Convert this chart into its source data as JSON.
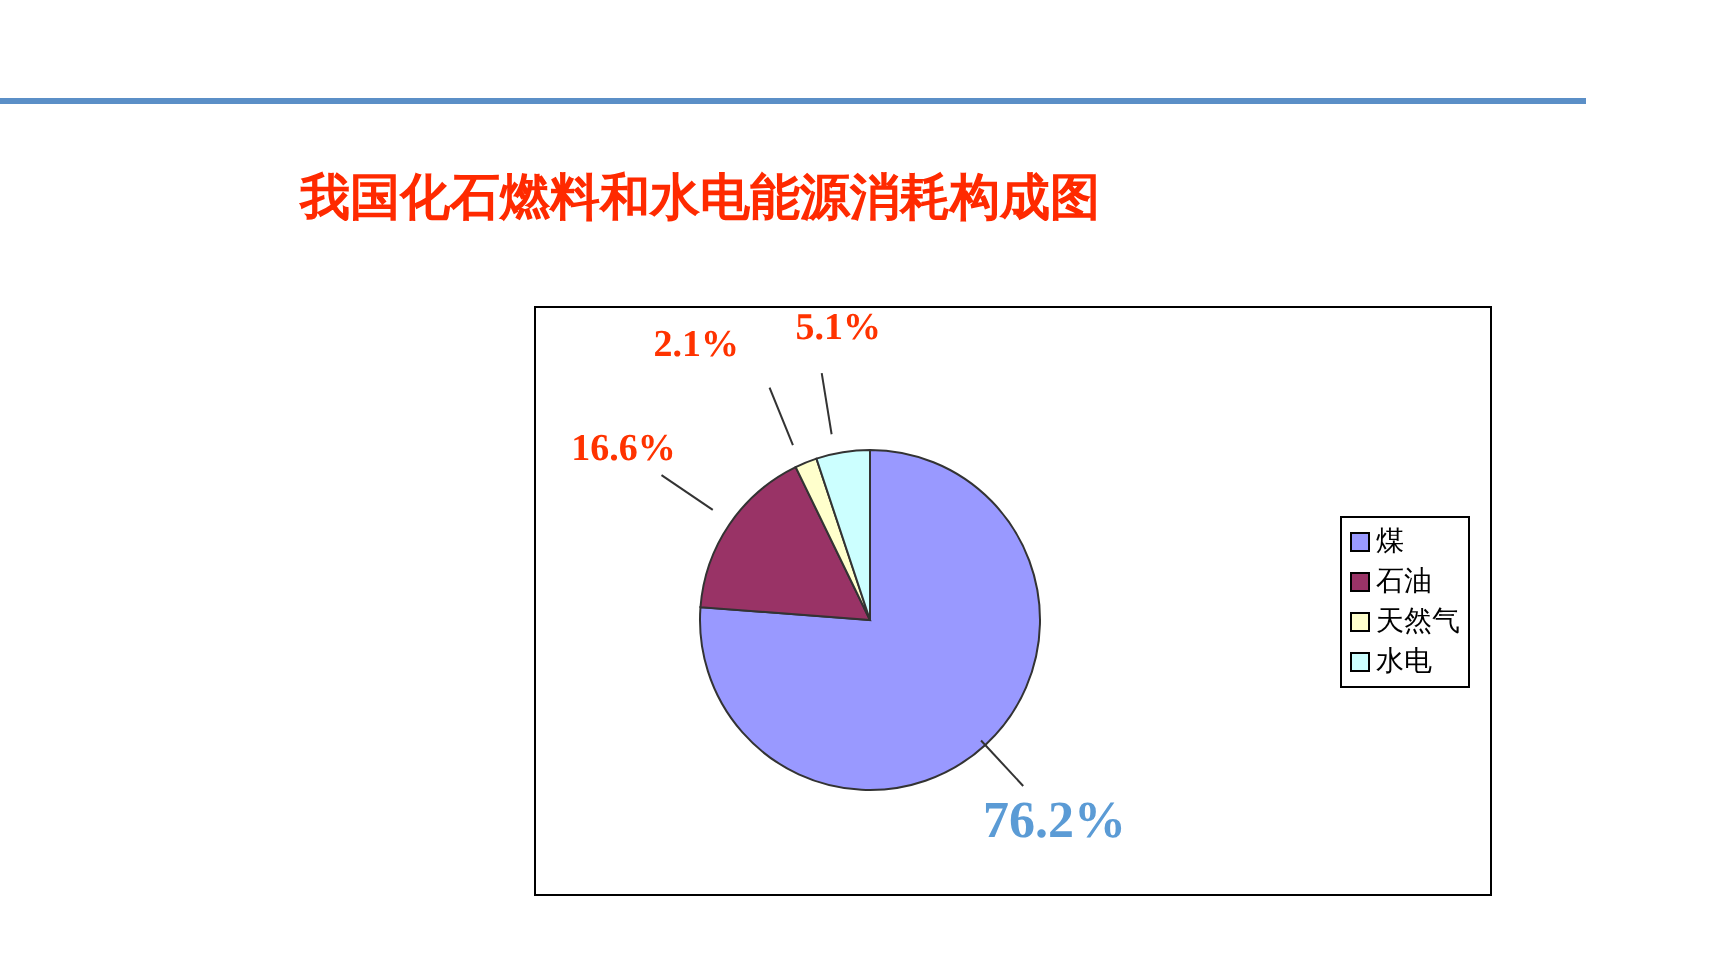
{
  "chart_data": {
    "type": "pie",
    "title": "我国化石燃料和水电能源消耗构成图",
    "categories": [
      "煤",
      "石油",
      "天然气",
      "水电"
    ],
    "values": [
      76.2,
      16.6,
      2.1,
      5.1
    ],
    "colors": [
      "#9999ff",
      "#993366",
      "#ffffcc",
      "#ccffff"
    ],
    "value_labels": [
      "76.2%",
      "16.6%",
      "2.1%",
      "5.1%"
    ],
    "legend": "right"
  }
}
